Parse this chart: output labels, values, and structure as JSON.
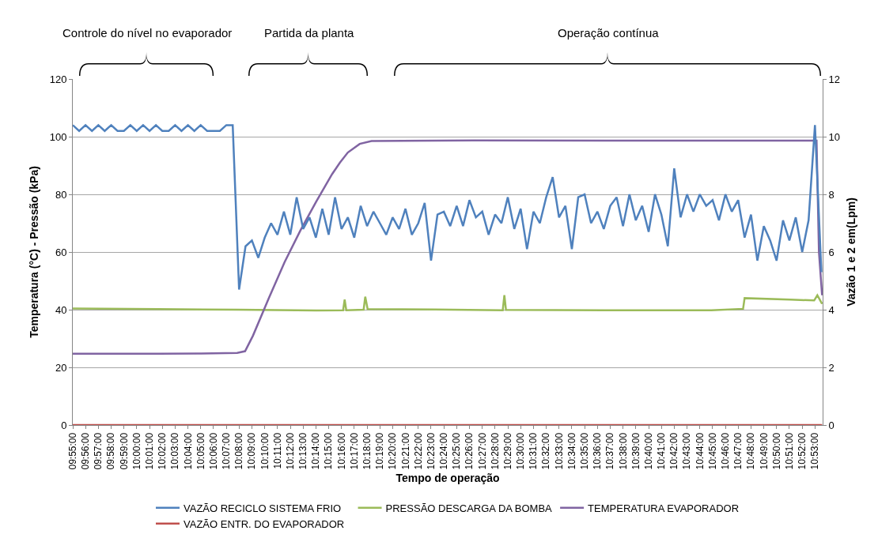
{
  "chart_data": {
    "type": "line",
    "xlabel": "Tempo de operação",
    "ylabel": "Temperatura (°C) - Pressão (kPa)",
    "y2label": "Vazão 1 e 2 em(Lpm)",
    "annotations": [
      "Controle do nível no evaporador",
      "Partida da planta",
      "Operação contínua"
    ],
    "series": [
      {
        "name": "VAZÃO RECICLO SISTEMA FRIO",
        "color": "#4f81bd",
        "axis": "y2",
        "x": [
          9.9167,
          9.925,
          9.9333,
          9.9417,
          9.95,
          9.9583,
          9.9667,
          9.975,
          9.9833,
          9.9917,
          10,
          10.0083,
          10.0167,
          10.025,
          10.0333,
          10.0417,
          10.05,
          10.0583,
          10.0667,
          10.075,
          10.0833,
          10.0917,
          10.1,
          10.1083,
          10.1167,
          10.125,
          10.1333,
          10.1417,
          10.15,
          10.1583,
          10.1667,
          10.175,
          10.1833,
          10.1917,
          10.2,
          10.2083,
          10.2167,
          10.225,
          10.2333,
          10.2417,
          10.25,
          10.2583,
          10.2667,
          10.275,
          10.2833,
          10.2917,
          10.3,
          10.3083,
          10.3167,
          10.325,
          10.3333,
          10.3417,
          10.35,
          10.3583,
          10.3667,
          10.375,
          10.3833,
          10.3917,
          10.4,
          10.4083,
          10.4167,
          10.425,
          10.4333,
          10.4417,
          10.45,
          10.4583,
          10.4667,
          10.475,
          10.4833,
          10.4917,
          10.5,
          10.5083,
          10.5167,
          10.525,
          10.5333,
          10.5417,
          10.55,
          10.5583,
          10.5667,
          10.575,
          10.5833,
          10.5917,
          10.6,
          10.6083,
          10.6167,
          10.625,
          10.6333,
          10.6417,
          10.65,
          10.6583,
          10.6667,
          10.675,
          10.6833,
          10.6917,
          10.7,
          10.7083,
          10.7167,
          10.725,
          10.7333,
          10.7417,
          10.75,
          10.7583,
          10.7667,
          10.775,
          10.7833,
          10.7917,
          10.8,
          10.8083,
          10.8167,
          10.825,
          10.8333,
          10.8417,
          10.85,
          10.8583,
          10.8667,
          10.875,
          10.8833,
          10.8917
        ],
        "values": [
          10.4,
          10.2,
          10.4,
          10.2,
          10.4,
          10.2,
          10.4,
          10.2,
          10.2,
          10.4,
          10.2,
          10.4,
          10.2,
          10.4,
          10.2,
          10.2,
          10.4,
          10.2,
          10.4,
          10.2,
          10.4,
          10.2,
          10.2,
          10.2,
          10.4,
          10.4,
          4.7,
          6.2,
          6.4,
          5.8,
          6.5,
          7.0,
          6.6,
          7.4,
          6.6,
          7.9,
          6.8,
          7.2,
          6.5,
          7.5,
          6.6,
          7.9,
          6.8,
          7.2,
          6.5,
          7.6,
          6.9,
          7.4,
          7.0,
          6.6,
          7.2,
          6.8,
          7.5,
          6.6,
          7.0,
          7.7,
          5.7,
          7.3,
          7.4,
          6.9,
          7.6,
          6.9,
          7.8,
          7.2,
          7.4,
          6.6,
          7.3,
          7.0,
          7.9,
          6.8,
          7.5,
          6.1,
          7.4,
          7.0,
          7.9,
          8.6,
          7.2,
          7.6,
          6.1,
          7.9,
          8.0,
          7.0,
          7.4,
          6.8,
          7.6,
          7.9,
          6.9,
          8.0,
          7.1,
          7.6,
          6.7,
          8.0,
          7.3,
          6.2,
          8.9,
          7.2,
          8.0,
          7.4,
          8.0,
          7.6,
          7.8,
          7.1,
          8.0,
          7.4,
          7.8,
          6.5,
          7.3,
          5.7,
          6.9,
          6.4,
          5.7,
          7.1,
          6.4,
          7.2,
          6.0,
          7.1,
          10.4,
          5.3
        ]
      },
      {
        "name": "PRESSÃO DESCARGA DA BOMBA",
        "color": "#9bbb59",
        "x": [
          9.9167,
          10.0279,
          10.1308,
          10.2338,
          10.2688,
          10.2708,
          10.2729,
          10.2955,
          10.2976,
          10.3007,
          10.3882,
          10.4767,
          10.4788,
          10.4809,
          10.6455,
          10.7485,
          10.7897,
          10.7917,
          10.8514,
          10.8823,
          10.8864,
          10.8926
        ],
        "values": [
          40.4,
          40.2,
          40.0,
          39.7,
          39.8,
          43.5,
          39.8,
          40.0,
          44.5,
          40.2,
          40.1,
          39.8,
          45,
          39.9,
          39.8,
          39.8,
          40.3,
          44,
          43.5,
          43.2,
          45,
          42
        ]
      },
      {
        "name": "TEMPERATURA EVAPORADOR",
        "color": "#8064a2",
        "x": [
          9.9167,
          10.0279,
          10.0793,
          10.1308,
          10.1411,
          10.1514,
          10.172,
          10.1926,
          10.2132,
          10.2338,
          10.2544,
          10.2647,
          10.2749,
          10.2904,
          10.3058,
          10.4397,
          10.6455,
          10.8802,
          10.8854,
          10.8885,
          10.8926
        ],
        "values": [
          24.7,
          24.7,
          24.8,
          25.0,
          25.6,
          31,
          44,
          56.5,
          67.5,
          77.5,
          87,
          91,
          94.5,
          97.5,
          98.5,
          98.7,
          98.6,
          98.6,
          98.6,
          60,
          45
        ]
      },
      {
        "name": "VAZÃO ENTR. DO EVAPORADOR",
        "color": "#c0504d",
        "axis": "y2",
        "x": [
          9.9167,
          10.8926
        ],
        "values": [
          0,
          0
        ]
      }
    ],
    "xlim": [
      9.9167,
      10.8933
    ],
    "xticks": [
      {
        "value": 9.9167,
        "label": "09:55:00"
      },
      {
        "value": 9.9333,
        "label": "09:56:00"
      },
      {
        "value": 9.95,
        "label": "09:57:00"
      },
      {
        "value": 9.9667,
        "label": "09:58:00"
      },
      {
        "value": 9.9833,
        "label": "09:59:00"
      },
      {
        "value": 10,
        "label": "10:00:00"
      },
      {
        "value": 10.0167,
        "label": "10:01:00"
      },
      {
        "value": 10.0333,
        "label": "10:02:00"
      },
      {
        "value": 10.05,
        "label": "10:03:00"
      },
      {
        "value": 10.0667,
        "label": "10:04:00"
      },
      {
        "value": 10.0833,
        "label": "10:05:00"
      },
      {
        "value": 10.1,
        "label": "10:06:00"
      },
      {
        "value": 10.1167,
        "label": "10:07:00"
      },
      {
        "value": 10.1333,
        "label": "10:08:00"
      },
      {
        "value": 10.15,
        "label": "10:09:00"
      },
      {
        "value": 10.1667,
        "label": "10:10:00"
      },
      {
        "value": 10.1833,
        "label": "10:11:00"
      },
      {
        "value": 10.2,
        "label": "10:12:00"
      },
      {
        "value": 10.2167,
        "label": "10:13:00"
      },
      {
        "value": 10.2333,
        "label": "10:14:00"
      },
      {
        "value": 10.25,
        "label": "10:15:00"
      },
      {
        "value": 10.2667,
        "label": "10:16:00"
      },
      {
        "value": 10.2833,
        "label": "10:17:00"
      },
      {
        "value": 10.3,
        "label": "10:18:00"
      },
      {
        "value": 10.3167,
        "label": "10:19:00"
      },
      {
        "value": 10.3333,
        "label": "10:20:00"
      },
      {
        "value": 10.35,
        "label": "10:21:00"
      },
      {
        "value": 10.3667,
        "label": "10:22:00"
      },
      {
        "value": 10.3833,
        "label": "10:23:00"
      },
      {
        "value": 10.4,
        "label": "10:24:00"
      },
      {
        "value": 10.4167,
        "label": "10:25:00"
      },
      {
        "value": 10.4333,
        "label": "10:26:00"
      },
      {
        "value": 10.45,
        "label": "10:27:00"
      },
      {
        "value": 10.4667,
        "label": "10:28:00"
      },
      {
        "value": 10.4833,
        "label": "10:29:00"
      },
      {
        "value": 10.5,
        "label": "10:30:00"
      },
      {
        "value": 10.5167,
        "label": "10:31:00"
      },
      {
        "value": 10.5333,
        "label": "10:32:00"
      },
      {
        "value": 10.55,
        "label": "10:33:00"
      },
      {
        "value": 10.5667,
        "label": "10:34:00"
      },
      {
        "value": 10.5833,
        "label": "10:35:00"
      },
      {
        "value": 10.6,
        "label": "10:36:00"
      },
      {
        "value": 10.6167,
        "label": "10:37:00"
      },
      {
        "value": 10.6333,
        "label": "10:38:00"
      },
      {
        "value": 10.65,
        "label": "10:39:00"
      },
      {
        "value": 10.6667,
        "label": "10:40:00"
      },
      {
        "value": 10.6833,
        "label": "10:41:00"
      },
      {
        "value": 10.7,
        "label": "10:42:00"
      },
      {
        "value": 10.7167,
        "label": "10:43:00"
      },
      {
        "value": 10.7333,
        "label": "10:44:00"
      },
      {
        "value": 10.75,
        "label": "10:45:00"
      },
      {
        "value": 10.7667,
        "label": "10:46:00"
      },
      {
        "value": 10.7833,
        "label": "10:47:00"
      },
      {
        "value": 10.8,
        "label": "10:48:00"
      },
      {
        "value": 10.8167,
        "label": "10:49:00"
      },
      {
        "value": 10.8333,
        "label": "10:50:00"
      },
      {
        "value": 10.85,
        "label": "10:51:00"
      },
      {
        "value": 10.8667,
        "label": "10:52:00"
      },
      {
        "value": 10.8833,
        "label": "10:53:00"
      }
    ],
    "ylim": [
      0,
      120
    ],
    "yticks": [
      0,
      20,
      40,
      60,
      80,
      100,
      120
    ],
    "y2lim": [
      0,
      12
    ],
    "y2ticks": [
      0,
      2,
      4,
      6,
      8,
      10,
      12
    ],
    "grid": "y",
    "legend": "bottom",
    "marker": "none",
    "line_style": "solid"
  }
}
